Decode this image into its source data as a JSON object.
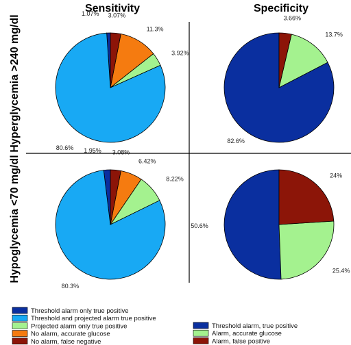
{
  "column_titles": [
    "Sensitivity",
    "Specificity"
  ],
  "row_titles": [
    "Hyperglycemia >240 mg/dl",
    "Hypoglycemia <70 mg/dl"
  ],
  "chart_data": [
    {
      "type": "pie",
      "panel": "Hyperglycemia >240 mg/dl - Sensitivity",
      "labels": [
        "Threshold alarm only true positive",
        "Threshold and projected alarm true positive",
        "Projected alarm only true positive",
        "No alarm, accurate glucose",
        "No alarm, false negative"
      ],
      "values": [
        1.07,
        80.6,
        3.92,
        11.3,
        3.07
      ],
      "value_labels": [
        "1.07%",
        "80.6%",
        "3.92%",
        "11.3%",
        "3.07%"
      ],
      "colors": [
        "#0a2f9f",
        "#18a9f4",
        "#a4f28f",
        "#f57b10",
        "#8c1508"
      ],
      "slice_order": [
        0,
        1,
        2,
        3,
        4
      ]
    },
    {
      "type": "pie",
      "panel": "Hyperglycemia >240 mg/dl - Specificity",
      "labels": [
        "Threshold alarm, true positive",
        "Alarm, accurate glucose",
        "Alarm, false positive"
      ],
      "values": [
        82.6,
        13.7,
        3.66
      ],
      "value_labels": [
        "82.6%",
        "13.7%",
        "3.66%"
      ],
      "colors": [
        "#0a2f9f",
        "#a4f28f",
        "#8c1508"
      ],
      "slice_order": [
        0,
        1,
        2
      ]
    },
    {
      "type": "pie",
      "panel": "Hypoglycemia <70 mg/dl - Sensitivity",
      "labels": [
        "Threshold alarm only true positive",
        "Threshold and projected alarm true positive",
        "Projected alarm only true positive",
        "No alarm, accurate glucose",
        "No alarm, false negative"
      ],
      "values": [
        1.95,
        80.3,
        8.22,
        6.42,
        3.08
      ],
      "value_labels": [
        "1.95%",
        "80.3%",
        "8.22%",
        "6.42%",
        "3.08%"
      ],
      "colors": [
        "#0a2f9f",
        "#18a9f4",
        "#a4f28f",
        "#f57b10",
        "#8c1508"
      ],
      "slice_order": [
        0,
        1,
        2,
        3,
        4
      ]
    },
    {
      "type": "pie",
      "panel": "Hypoglycemia <70 mg/dl - Specificity",
      "labels": [
        "Threshold alarm, true positive",
        "Alarm, accurate glucose",
        "Alarm, false positive"
      ],
      "values": [
        50.6,
        25.4,
        24
      ],
      "value_labels": [
        "50.6%",
        "25.4%",
        "24%"
      ],
      "colors": [
        "#0a2f9f",
        "#a4f28f",
        "#8c1508"
      ],
      "slice_order": [
        0,
        1,
        2
      ]
    }
  ],
  "legend_sensitivity": [
    {
      "label": "Threshold alarm only true positive",
      "color": "#0a2f9f"
    },
    {
      "label": "Threshold and projected alarm true positive",
      "color": "#18a9f4"
    },
    {
      "label": "Projected alarm only true positive",
      "color": "#a4f28f"
    },
    {
      "label": "No alarm, accurate glucose",
      "color": "#f57b10"
    },
    {
      "label": "No alarm, false negative",
      "color": "#8c1508"
    }
  ],
  "legend_specificity": [
    {
      "label": "Threshold alarm, true positive",
      "color": "#0a2f9f"
    },
    {
      "label": "Alarm, accurate glucose",
      "color": "#a4f28f"
    },
    {
      "label": "Alarm, false positive",
      "color": "#8c1508"
    }
  ]
}
